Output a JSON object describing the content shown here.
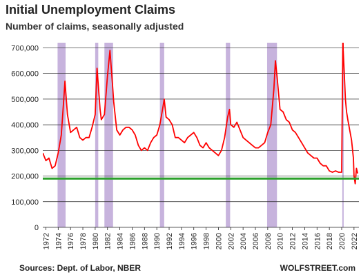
{
  "chart_data": {
    "type": "line",
    "title": "Initial Unemployment Claims",
    "subtitle": "Number of claims, seasonally adjusted",
    "xlabel": "",
    "ylabel": "",
    "xlim": [
      1971.5,
      2022.8
    ],
    "ylim": [
      0,
      720000
    ],
    "yticks": [
      0,
      100000,
      200000,
      300000,
      400000,
      500000,
      600000,
      700000
    ],
    "ytick_labels": [
      "0",
      "100,000",
      "200,000",
      "300,000",
      "400,000",
      "500,000",
      "600,000",
      "700,000"
    ],
    "xticks": [
      1972,
      1974,
      1976,
      1978,
      1980,
      1982,
      1984,
      1986,
      1988,
      1990,
      1992,
      1994,
      1996,
      1998,
      2000,
      2002,
      2004,
      2006,
      2008,
      2010,
      2012,
      2014,
      2016,
      2018,
      2020,
      2022
    ],
    "grid": "horizontal",
    "recessions": [
      [
        1973.9,
        1975.2
      ],
      [
        1980.0,
        1980.5
      ],
      [
        1981.5,
        1982.9
      ],
      [
        1990.5,
        1991.2
      ],
      [
        2001.2,
        2001.9
      ],
      [
        2007.9,
        2009.5
      ],
      [
        2020.1,
        2020.3
      ]
    ],
    "reference_line": {
      "y": 190000,
      "color": "#2ca02c"
    },
    "series": [
      {
        "color": "#ff0000",
        "x": [
          1971.5,
          1972,
          1972.5,
          1973,
          1973.5,
          1974,
          1974.5,
          1974.9,
          1975.1,
          1975.5,
          1976,
          1976.5,
          1977,
          1977.5,
          1978,
          1978.5,
          1979,
          1979.5,
          1980,
          1980.3,
          1980.8,
          1981,
          1981.5,
          1982,
          1982.4,
          1982.8,
          1983,
          1983.5,
          1984,
          1984.5,
          1985,
          1985.5,
          1986,
          1986.5,
          1987,
          1987.5,
          1988,
          1988.5,
          1989,
          1989.5,
          1990,
          1990.5,
          1991,
          1991.2,
          1991.5,
          1992,
          1992.5,
          1993,
          1993.5,
          1994,
          1994.5,
          1995,
          1995.5,
          1996,
          1996.5,
          1997,
          1997.5,
          1998,
          1998.5,
          1999,
          1999.5,
          2000,
          2000.5,
          2001,
          2001.5,
          2001.8,
          2002,
          2002.5,
          2003,
          2003.5,
          2004,
          2004.5,
          2005,
          2005.5,
          2006,
          2006.5,
          2007,
          2007.5,
          2008,
          2008.5,
          2009,
          2009.25,
          2009.5,
          2010,
          2010.5,
          2011,
          2011.5,
          2012,
          2012.5,
          2013,
          2013.5,
          2014,
          2014.5,
          2015,
          2015.5,
          2016,
          2016.5,
          2017,
          2017.5,
          2018,
          2018.5,
          2019,
          2019.5,
          2020,
          2020.2,
          2020.22,
          2020.25,
          2020.4,
          2020.6,
          2020.8,
          2021,
          2021.3,
          2021.6,
          2021.9,
          2022,
          2022.2,
          2022.4,
          2022.6
        ],
        "y": [
          290000,
          260000,
          270000,
          230000,
          240000,
          290000,
          360000,
          500000,
          570000,
          440000,
          370000,
          380000,
          390000,
          350000,
          340000,
          350000,
          350000,
          390000,
          440000,
          620000,
          460000,
          420000,
          440000,
          590000,
          690000,
          560000,
          490000,
          380000,
          360000,
          380000,
          390000,
          390000,
          380000,
          360000,
          320000,
          300000,
          310000,
          300000,
          330000,
          350000,
          360000,
          400000,
          470000,
          500000,
          430000,
          420000,
          400000,
          350000,
          350000,
          340000,
          330000,
          350000,
          360000,
          370000,
          350000,
          320000,
          310000,
          330000,
          310000,
          300000,
          290000,
          280000,
          300000,
          350000,
          430000,
          460000,
          400000,
          390000,
          410000,
          380000,
          350000,
          340000,
          330000,
          320000,
          310000,
          310000,
          320000,
          330000,
          370000,
          400000,
          540000,
          650000,
          590000,
          460000,
          450000,
          420000,
          410000,
          380000,
          370000,
          350000,
          330000,
          310000,
          290000,
          280000,
          270000,
          270000,
          250000,
          240000,
          240000,
          220000,
          215000,
          220000,
          215000,
          215000,
          750000,
          720000,
          690000,
          610000,
          500000,
          450000,
          420000,
          380000,
          340000,
          270000,
          200000,
          170000,
          230000,
          210000
        ]
      }
    ]
  },
  "footer": {
    "source": "Sources: Dept. of Labor, NBER",
    "brand": "WOLFSTREET.com"
  }
}
